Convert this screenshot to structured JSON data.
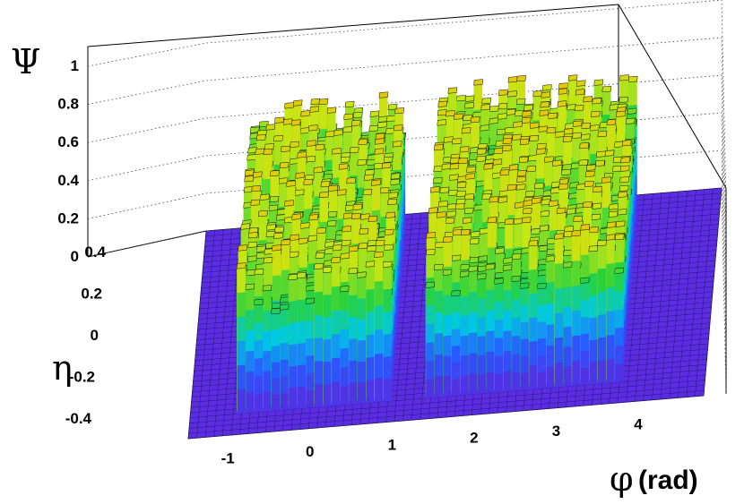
{
  "chart_data": {
    "type": "lego3d",
    "title": "",
    "zlabel": "Ψ",
    "ylabel": "η",
    "xlabel_symbol": "φ",
    "xlabel_unit": "(rad)",
    "zlim": [
      0,
      1.1
    ],
    "z_ticks": [
      "0",
      "0.2",
      "0.4",
      "0.6",
      "0.8",
      "1"
    ],
    "y_ticks": [
      "-0.4",
      "-0.2",
      "0",
      "0.2",
      "0.4"
    ],
    "x_ticks": [
      "-1",
      "0",
      "1",
      "2",
      "3",
      "4"
    ],
    "xlim": [
      -1.57,
      4.71
    ],
    "ylim": [
      -0.5,
      0.5
    ],
    "grid": true,
    "colormap": "rainbow",
    "regions": [
      {
        "name": "",
        "phi_range": [
          -1.0,
          0.8
        ],
        "eta_range": [
          -0.4,
          0.4
        ],
        "peak": 0.8
      },
      {
        "name": "",
        "phi_range": [
          1.3,
          3.7
        ],
        "eta_range": [
          -0.4,
          0.4
        ],
        "peak": 0.8
      }
    ]
  }
}
